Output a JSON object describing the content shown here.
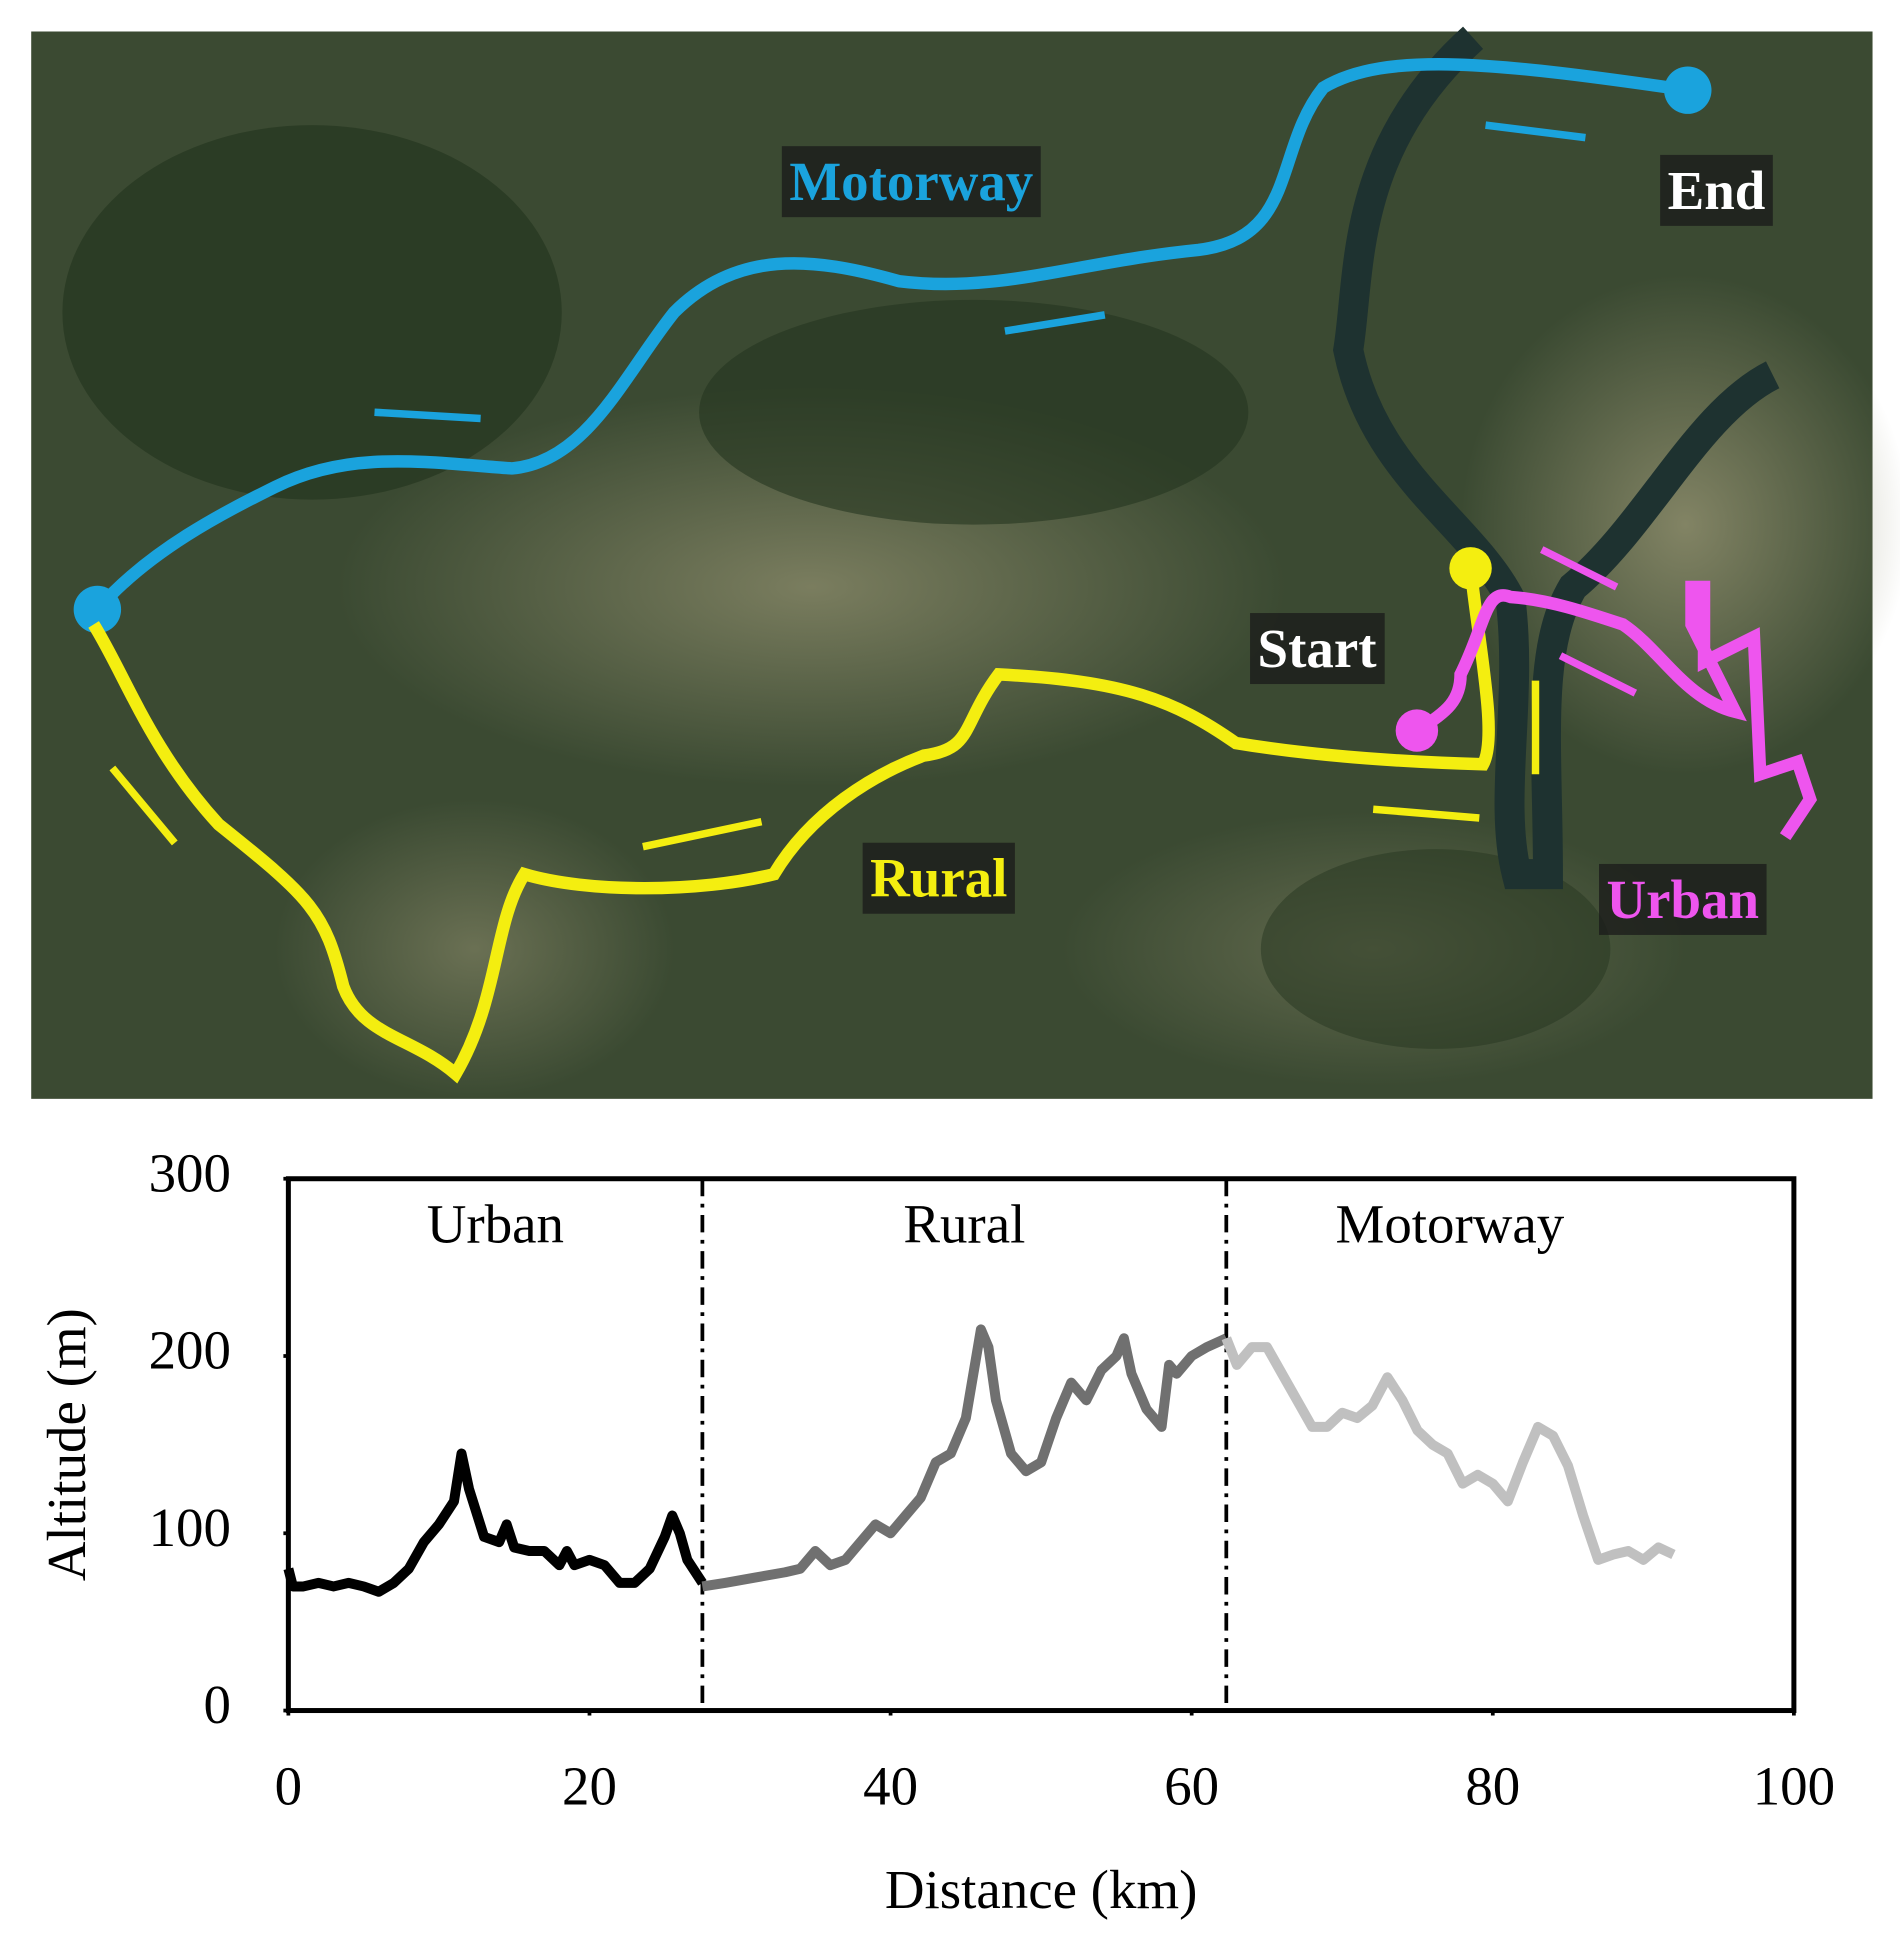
{
  "map": {
    "labels": [
      "Motorway",
      "End",
      "Start",
      "Rural",
      "Urban"
    ]
  },
  "chart_data": {
    "type": "line",
    "x_label": "Distance (km)",
    "y_label": "Altitude (m)",
    "xlim": [
      0,
      100
    ],
    "xticks": [
      0,
      20,
      40,
      60,
      80,
      100
    ],
    "ylim": [
      0,
      300
    ],
    "yticks": [
      0,
      100,
      200,
      300
    ],
    "section_boundaries": [
      27.5,
      62.3
    ],
    "series": [
      {
        "name": "Urban",
        "color": "#000000",
        "x": [
          0,
          0.3,
          1,
          2,
          3,
          4,
          5,
          6,
          7,
          8,
          9,
          10,
          11,
          11.5,
          12,
          13,
          14,
          14.5,
          15,
          16,
          17,
          18,
          18.5,
          19,
          20,
          21,
          22,
          23,
          24,
          25,
          25.5,
          26,
          26.5,
          27.5
        ],
        "values": [
          80,
          70,
          70,
          72,
          70,
          72,
          70,
          67,
          72,
          80,
          95,
          105,
          118,
          145,
          125,
          98,
          95,
          105,
          92,
          90,
          90,
          82,
          90,
          82,
          85,
          82,
          72,
          72,
          80,
          98,
          110,
          100,
          85,
          72
        ]
      },
      {
        "name": "Rural",
        "color": "#707070",
        "x": [
          27.5,
          29,
          31,
          33,
          34,
          35,
          36,
          37,
          38,
          39,
          40,
          41,
          42,
          43,
          44,
          45,
          46,
          46.5,
          47,
          48,
          49,
          50,
          51,
          52,
          53,
          54,
          55,
          55.5,
          56,
          57,
          58,
          58.5,
          59,
          60,
          61,
          62.3
        ],
        "values": [
          70,
          72,
          75,
          78,
          80,
          90,
          82,
          85,
          95,
          105,
          100,
          110,
          120,
          140,
          145,
          165,
          215,
          205,
          175,
          145,
          135,
          140,
          165,
          185,
          175,
          192,
          200,
          210,
          190,
          170,
          160,
          195,
          190,
          200,
          205,
          210
        ]
      },
      {
        "name": "Motorway",
        "color": "#c0c0c0",
        "x": [
          62.3,
          63,
          64,
          65,
          66,
          67,
          68,
          69,
          70,
          71,
          72,
          73,
          74,
          75,
          76,
          77,
          78,
          79,
          80,
          81,
          82,
          83,
          84,
          85,
          86,
          87,
          88,
          89,
          90,
          91,
          92
        ],
        "values": [
          210,
          195,
          205,
          205,
          190,
          175,
          160,
          160,
          168,
          165,
          172,
          188,
          175,
          158,
          150,
          145,
          128,
          133,
          128,
          118,
          140,
          160,
          155,
          138,
          110,
          85,
          88,
          90,
          85,
          92,
          88
        ]
      }
    ]
  }
}
